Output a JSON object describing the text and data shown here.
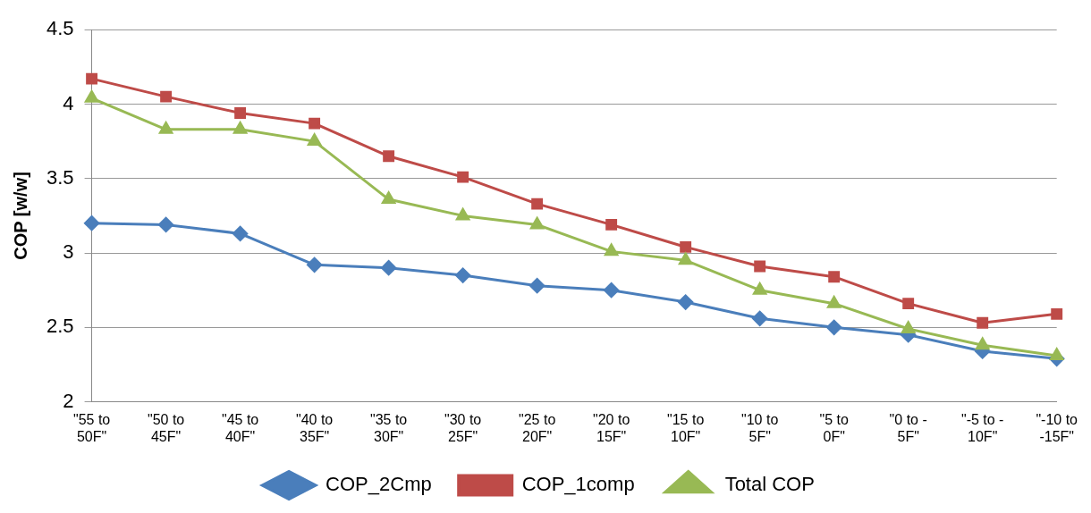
{
  "chart_data": {
    "type": "line",
    "ylabel": "COP [w/w]",
    "categories": [
      "\"55 to 50F\"",
      "\"50 to 45F\"",
      "\"45 to 40F\"",
      "\"40 to 35F\"",
      "\"35 to 30F\"",
      "\"30 to 25F\"",
      "\"25 to 20F\"",
      "\"20 to 15F\"",
      "\"15 to 10F\"",
      "\"10 to 5F\"",
      "\"5 to 0F\"",
      "\"0 to -5F\"",
      "\"-5 to -10F\"",
      "\"-10 to -15F\""
    ],
    "series": [
      {
        "name": "COP_2Cmp",
        "color": "#4a7ebb",
        "marker": "diamond",
        "values": [
          3.2,
          3.19,
          3.13,
          2.92,
          2.9,
          2.85,
          2.78,
          2.75,
          2.67,
          2.56,
          2.5,
          2.45,
          2.34,
          2.29
        ]
      },
      {
        "name": "COP_1comp",
        "color": "#be4b48",
        "marker": "square",
        "values": [
          4.17,
          4.05,
          3.94,
          3.87,
          3.65,
          3.51,
          3.33,
          3.19,
          3.04,
          2.91,
          2.84,
          2.66,
          2.53,
          2.59
        ]
      },
      {
        "name": "Total COP",
        "color": "#98b954",
        "marker": "triangle",
        "values": [
          4.04,
          3.83,
          3.83,
          3.75,
          3.36,
          3.25,
          3.19,
          3.01,
          2.95,
          2.75,
          2.66,
          2.49,
          2.38,
          2.31
        ]
      }
    ],
    "ylim": [
      2,
      4.5
    ],
    "yticks": [
      2,
      2.5,
      3,
      3.5,
      4,
      4.5
    ],
    "grid": "y",
    "legend": "bottom",
    "line_style": "solid"
  }
}
